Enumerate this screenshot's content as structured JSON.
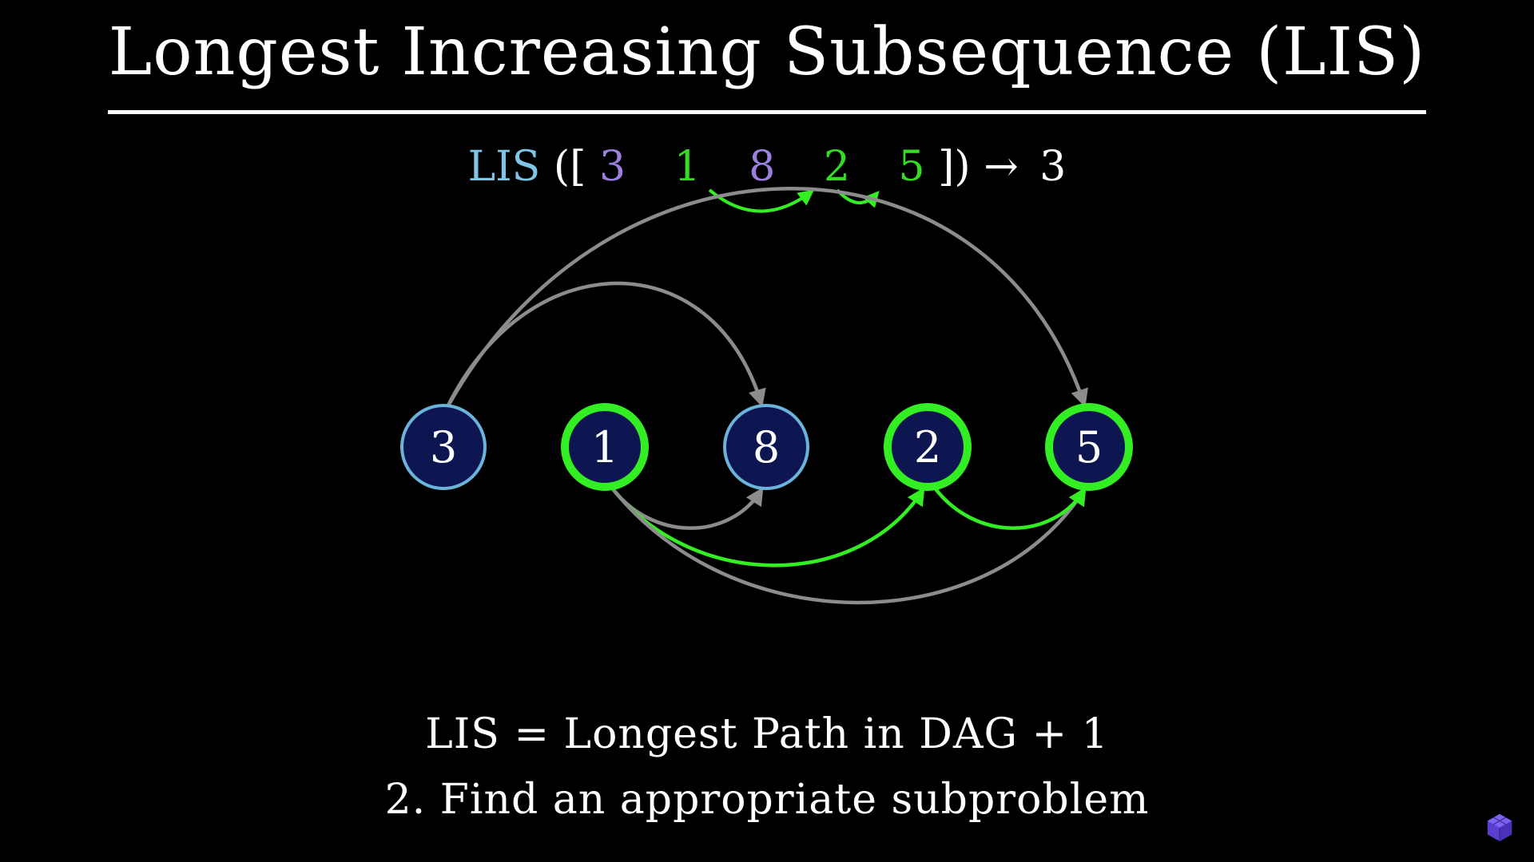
{
  "title": "Longest Increasing Subsequence (LIS)",
  "formula": {
    "func": "LIS",
    "open": "([",
    "sequence": [
      {
        "text": "3",
        "color": "#9b80e0"
      },
      {
        "text": "1",
        "color": "#33dd22"
      },
      {
        "text": "8",
        "color": "#9b80e0"
      },
      {
        "text": "2",
        "color": "#33dd22"
      },
      {
        "text": "5",
        "color": "#33dd22"
      }
    ],
    "close": "])",
    "arrow": "→",
    "result": "3"
  },
  "nodes": [
    {
      "label": "3",
      "in_path": false
    },
    {
      "label": "1",
      "in_path": true
    },
    {
      "label": "8",
      "in_path": false
    },
    {
      "label": "2",
      "in_path": true
    },
    {
      "label": "5",
      "in_path": true
    }
  ],
  "edges": [
    {
      "from": "3",
      "to": "8",
      "highlight": false
    },
    {
      "from": "3",
      "to": "5",
      "highlight": false
    },
    {
      "from": "1",
      "to": "8",
      "highlight": false
    },
    {
      "from": "1",
      "to": "2",
      "highlight": true
    },
    {
      "from": "1",
      "to": "5",
      "highlight": false
    },
    {
      "from": "2",
      "to": "5",
      "highlight": true
    }
  ],
  "bottom": {
    "line1": "LIS = Longest Path in DAG + 1",
    "line2": "2. Find an appropriate subproblem"
  },
  "colors": {
    "background": "#000000",
    "node_fill": "#0d1650",
    "node_border": "#6bb3d9",
    "path_border": "#33ee22",
    "edge_gray": "#8c8c8c",
    "edge_green": "#33ee22",
    "func_color": "#7fc6e6"
  }
}
